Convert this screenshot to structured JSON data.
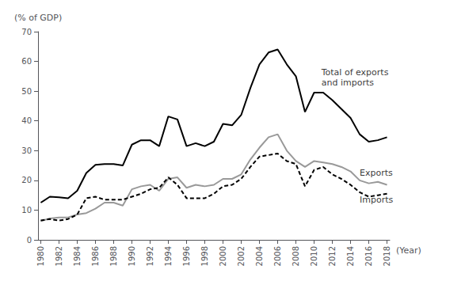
{
  "chart_data": {
    "type": "line",
    "x": [
      1980,
      1981,
      1982,
      1983,
      1984,
      1985,
      1986,
      1987,
      1988,
      1989,
      1990,
      1991,
      1992,
      1993,
      1994,
      1995,
      1996,
      1997,
      1998,
      1999,
      2000,
      2001,
      2002,
      2003,
      2004,
      2005,
      2006,
      2007,
      2008,
      2009,
      2010,
      2011,
      2012,
      2013,
      2014,
      2015,
      2016,
      2017,
      2018
    ],
    "series": [
      {
        "name": "Total of exports\nand imports",
        "color": "#000000",
        "line_style": "solid",
        "values": [
          12.5,
          14.5,
          14.3,
          14.0,
          16.5,
          22.5,
          25.2,
          25.5,
          25.5,
          25.0,
          32.0,
          33.5,
          33.5,
          31.5,
          41.5,
          40.5,
          31.5,
          32.5,
          31.5,
          33.0,
          39.0,
          38.5,
          42.0,
          51.0,
          59.0,
          63.0,
          64.0,
          59.0,
          55.0,
          43.0,
          49.5,
          49.5,
          47.0,
          44.0,
          41.0,
          35.5,
          33.0,
          33.5,
          34.5
        ]
      },
      {
        "name": "Exports",
        "color": "#999999",
        "line_style": "solid",
        "values": [
          6.3,
          7.2,
          7.5,
          7.5,
          8.5,
          9.0,
          10.5,
          12.5,
          12.5,
          11.5,
          17.0,
          18.0,
          18.5,
          16.5,
          20.5,
          21.0,
          17.5,
          18.5,
          18.0,
          18.5,
          20.5,
          20.5,
          22.0,
          27.0,
          31.0,
          34.5,
          35.5,
          30.0,
          26.5,
          24.5,
          26.5,
          26.0,
          25.5,
          24.5,
          23.0,
          20.0,
          19.0,
          19.5,
          18.5
        ]
      },
      {
        "name": "Imports",
        "color": "#000000",
        "line_style": "dashed",
        "values": [
          6.5,
          7.0,
          6.5,
          7.0,
          8.5,
          14.0,
          14.5,
          13.5,
          13.5,
          13.5,
          14.5,
          15.5,
          17.0,
          17.5,
          21.0,
          18.5,
          14.0,
          14.0,
          14.0,
          15.5,
          18.0,
          18.5,
          20.5,
          24.5,
          28.0,
          28.5,
          29.0,
          26.5,
          25.5,
          18.0,
          23.5,
          24.5,
          22.0,
          20.5,
          18.5,
          16.0,
          14.5,
          15.0,
          15.5
        ]
      }
    ],
    "y_label": "(% of GDP)",
    "x_label": "(Year)",
    "ylim": [
      0,
      70
    ],
    "yticks": [
      0,
      10,
      20,
      30,
      40,
      50,
      60,
      70
    ],
    "xlim": [
      1979.7,
      2018.3
    ],
    "xticks": [
      1980,
      1982,
      1984,
      1986,
      1988,
      1990,
      1992,
      1994,
      1996,
      1998,
      2000,
      2002,
      2004,
      2006,
      2008,
      2010,
      2012,
      2014,
      2016,
      2018
    ],
    "grid": false,
    "annotations": [
      {
        "text": "Total of exports\nand imports",
        "x": 2010.8,
        "y": 54.5,
        "color": "#000000"
      },
      {
        "text": "Exports",
        "x": 2015.0,
        "y": 22.5,
        "color": "#000000"
      },
      {
        "text": "Imports",
        "x": 2015.0,
        "y": 13.5,
        "color": "#000000"
      }
    ]
  }
}
